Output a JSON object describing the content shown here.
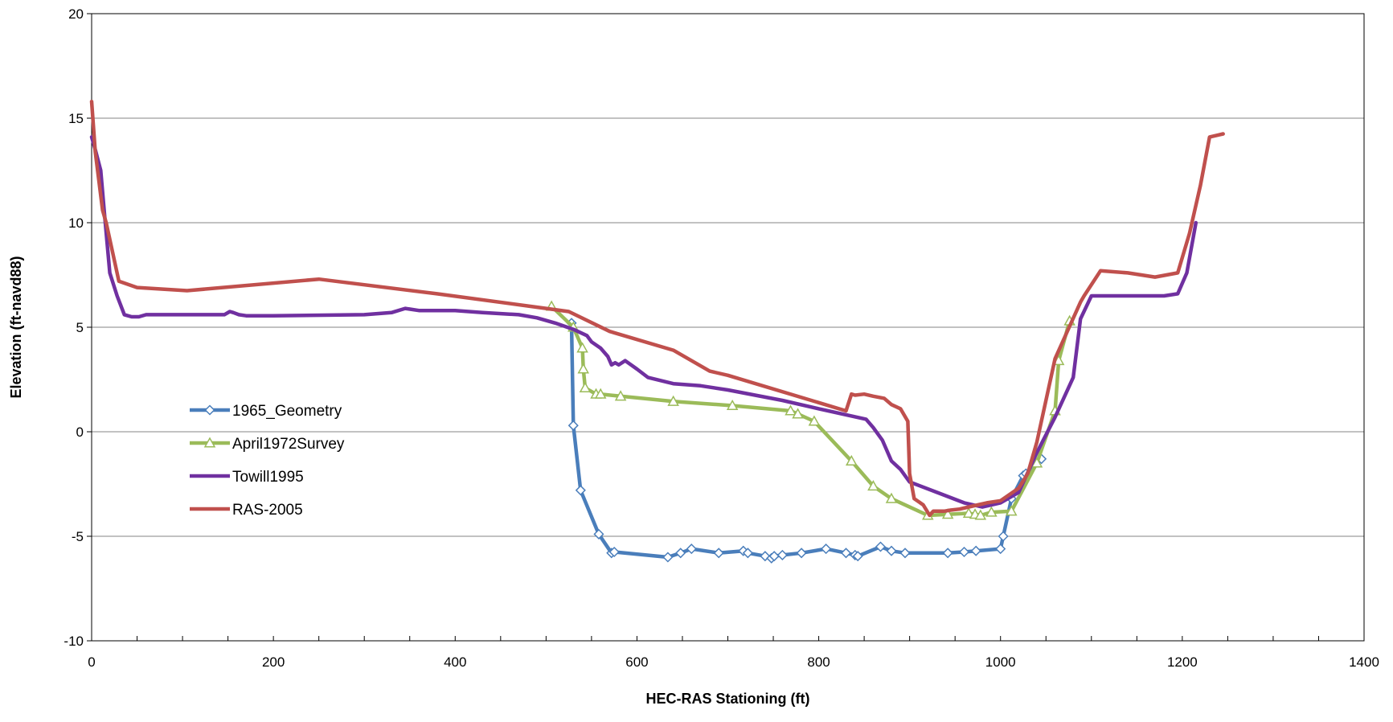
{
  "chart_data": {
    "type": "line",
    "title": "",
    "xlabel": "HEC-RAS Stationing (ft)",
    "ylabel": "Elevation (ft-navd88)",
    "xlim": [
      0,
      1400
    ],
    "ylim": [
      -10,
      20
    ],
    "x_ticks": [
      "0",
      "200",
      "400",
      "600",
      "800",
      "1000",
      "1200",
      "1400"
    ],
    "y_ticks": [
      "20",
      "15",
      "10",
      "5",
      "0",
      "-5",
      "-10"
    ],
    "grid": "horizontal",
    "legend_position": "left-center",
    "series": [
      {
        "name": "1965_Geometry",
        "color": "#4a7ebb",
        "marker": "diamond",
        "x": [
          528,
          530,
          538,
          558,
          572,
          575,
          634,
          648,
          660,
          690,
          717,
          722,
          741,
          748,
          751,
          760,
          781,
          808,
          830,
          840,
          843,
          868,
          880,
          895,
          942,
          960,
          973,
          1000,
          1003,
          1012,
          1025,
          1028,
          1045
        ],
        "y": [
          5.2,
          0.3,
          -2.8,
          -4.9,
          -5.8,
          -5.75,
          -6.0,
          -5.8,
          -5.6,
          -5.8,
          -5.7,
          -5.8,
          -5.95,
          -6.05,
          -5.95,
          -5.9,
          -5.8,
          -5.6,
          -5.8,
          -5.9,
          -5.95,
          -5.5,
          -5.7,
          -5.8,
          -5.8,
          -5.75,
          -5.7,
          -5.6,
          -5.0,
          -3.2,
          -2.1,
          -2.0,
          -1.3
        ]
      },
      {
        "name": "April1972Survey",
        "color": "#9bbb59",
        "marker": "triangle",
        "x": [
          506,
          530,
          540,
          541,
          543,
          555,
          560,
          582,
          640,
          705,
          769,
          777,
          795,
          836,
          860,
          880,
          920,
          942,
          965,
          972,
          978,
          990,
          1012,
          1040,
          1060,
          1064,
          1076
        ],
        "y": [
          6.0,
          5.0,
          4.0,
          3.0,
          2.1,
          1.8,
          1.8,
          1.7,
          1.45,
          1.25,
          1.0,
          0.85,
          0.5,
          -1.4,
          -2.6,
          -3.2,
          -4.0,
          -3.95,
          -3.9,
          -3.95,
          -4.0,
          -3.85,
          -3.8,
          -1.5,
          1.0,
          3.4,
          5.3
        ]
      },
      {
        "name": "Towill1995",
        "color": "#7030a0",
        "marker": "none",
        "x": [
          0,
          4,
          10,
          14,
          20,
          28,
          36,
          44,
          52,
          60,
          80,
          146,
          152,
          156,
          162,
          170,
          200,
          300,
          330,
          345,
          360,
          380,
          400,
          430,
          470,
          490,
          510,
          530,
          545,
          550,
          560,
          568,
          572,
          576,
          580,
          587,
          600,
          612,
          640,
          670,
          700,
          760,
          800,
          852,
          860,
          870,
          880,
          890,
          900,
          930,
          960,
          980,
          1000,
          1020,
          1040,
          1060,
          1080,
          1088,
          1100,
          1140,
          1180,
          1195,
          1205,
          1215
        ],
        "y": [
          14.1,
          13.5,
          12.5,
          10.5,
          7.6,
          6.5,
          5.6,
          5.5,
          5.5,
          5.6,
          5.6,
          5.6,
          5.75,
          5.7,
          5.6,
          5.55,
          5.55,
          5.6,
          5.7,
          5.9,
          5.8,
          5.8,
          5.8,
          5.7,
          5.6,
          5.45,
          5.2,
          4.9,
          4.6,
          4.3,
          4.0,
          3.6,
          3.2,
          3.3,
          3.2,
          3.4,
          3.0,
          2.6,
          2.3,
          2.2,
          2.0,
          1.5,
          1.1,
          0.6,
          0.2,
          -0.4,
          -1.4,
          -1.8,
          -2.4,
          -2.9,
          -3.4,
          -3.6,
          -3.4,
          -2.9,
          -1.0,
          0.7,
          2.6,
          5.4,
          6.5,
          6.5,
          6.5,
          6.6,
          7.6,
          10.0
        ]
      },
      {
        "name": "RAS-2005",
        "color": "#c0504d",
        "marker": "none",
        "x": [
          0,
          4,
          12,
          16,
          30,
          50,
          105,
          250,
          380,
          500,
          525,
          570,
          640,
          680,
          700,
          830,
          836,
          840,
          850,
          860,
          872,
          880,
          890,
          898,
          900,
          905,
          915,
          922,
          926,
          930,
          938,
          945,
          955,
          975,
          985,
          1000,
          1020,
          1030,
          1040,
          1060,
          1088,
          1092,
          1110,
          1140,
          1170,
          1195,
          1208,
          1220,
          1230,
          1240,
          1245
        ],
        "y": [
          15.8,
          13.4,
          10.6,
          10.0,
          7.2,
          6.9,
          6.75,
          7.3,
          6.6,
          5.9,
          5.75,
          4.8,
          3.9,
          2.9,
          2.7,
          1.0,
          1.8,
          1.75,
          1.8,
          1.7,
          1.6,
          1.3,
          1.1,
          0.5,
          -2.0,
          -3.2,
          -3.5,
          -4.0,
          -3.8,
          -3.8,
          -3.8,
          -3.75,
          -3.7,
          -3.5,
          -3.4,
          -3.3,
          -2.7,
          -2.0,
          -0.5,
          3.5,
          6.2,
          6.5,
          7.7,
          7.6,
          7.4,
          7.6,
          9.5,
          11.8,
          14.1,
          14.2,
          14.25
        ]
      }
    ]
  }
}
